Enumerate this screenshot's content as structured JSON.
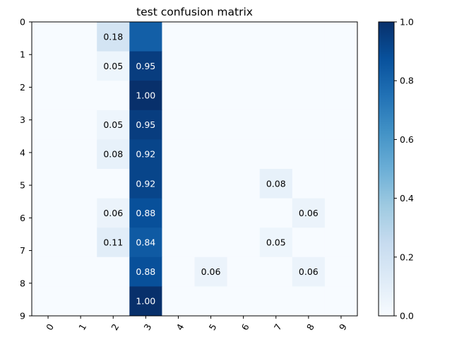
{
  "chart_data": {
    "type": "heatmap",
    "title": "test confusion matrix",
    "xlabel": "",
    "ylabel": "",
    "x_categories": [
      "0",
      "1",
      "2",
      "3",
      "4",
      "5",
      "6",
      "7",
      "8",
      "9"
    ],
    "y_categories": [
      "0",
      "1",
      "2",
      "3",
      "4",
      "5",
      "6",
      "7",
      "8",
      "9"
    ],
    "values": [
      [
        0,
        0,
        0.18,
        0.82,
        0,
        0,
        0,
        0,
        0,
        0
      ],
      [
        0,
        0,
        0.05,
        0.95,
        0,
        0,
        0,
        0,
        0,
        0
      ],
      [
        0,
        0,
        0,
        1.0,
        0,
        0,
        0,
        0,
        0,
        0
      ],
      [
        0,
        0,
        0.05,
        0.95,
        0,
        0,
        0,
        0,
        0,
        0
      ],
      [
        0,
        0,
        0.08,
        0.92,
        0,
        0,
        0,
        0,
        0,
        0
      ],
      [
        0,
        0,
        0,
        0.92,
        0,
        0,
        0,
        0.08,
        0,
        0
      ],
      [
        0,
        0,
        0.06,
        0.88,
        0,
        0,
        0,
        0,
        0.06,
        0
      ],
      [
        0,
        0,
        0.11,
        0.84,
        0,
        0,
        0,
        0.05,
        0,
        0
      ],
      [
        0,
        0,
        0,
        0.88,
        0,
        0.06,
        0,
        0,
        0.06,
        0
      ],
      [
        0,
        0,
        0,
        1.0,
        0,
        0,
        0,
        0,
        0,
        0
      ]
    ],
    "cell_labels": [
      [
        "",
        "",
        "0.18",
        "",
        "",
        "",
        "",
        "",
        "",
        ""
      ],
      [
        "",
        "",
        "0.05",
        "0.95",
        "",
        "",
        "",
        "",
        "",
        ""
      ],
      [
        "",
        "",
        "",
        "1.00",
        "",
        "",
        "",
        "",
        "",
        ""
      ],
      [
        "",
        "",
        "0.05",
        "0.95",
        "",
        "",
        "",
        "",
        "",
        ""
      ],
      [
        "",
        "",
        "0.08",
        "0.92",
        "",
        "",
        "",
        "",
        "",
        ""
      ],
      [
        "",
        "",
        "",
        "0.92",
        "",
        "",
        "",
        "0.08",
        "",
        ""
      ],
      [
        "",
        "",
        "0.06",
        "0.88",
        "",
        "",
        "",
        "",
        "0.06",
        ""
      ],
      [
        "",
        "",
        "0.11",
        "0.84",
        "",
        "",
        "",
        "0.05",
        "",
        ""
      ],
      [
        "",
        "",
        "",
        "0.88",
        "",
        "0.06",
        "",
        "",
        "0.06",
        ""
      ],
      [
        "",
        "",
        "",
        "1.00",
        "",
        "",
        "",
        "",
        "",
        ""
      ]
    ],
    "colormap": "Blues",
    "colorbar": {
      "range": [
        0.0,
        1.0
      ],
      "ticks": [
        "0.0",
        "0.2",
        "0.4",
        "0.6",
        "0.8",
        "1.0"
      ]
    },
    "grid": false
  }
}
